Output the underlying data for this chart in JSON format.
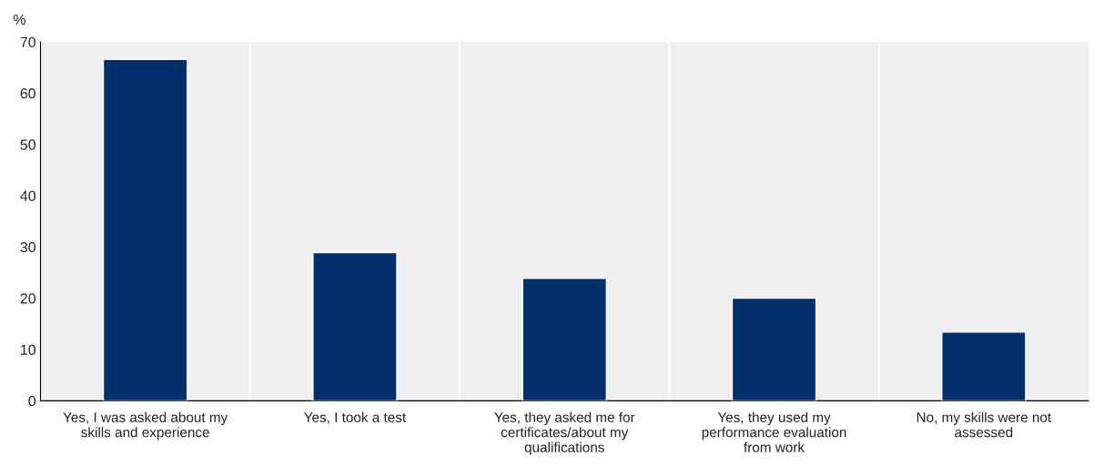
{
  "chart_data": {
    "type": "bar",
    "ylabel": "%",
    "categories": [
      "Yes, I was asked about my skills and experience",
      "Yes, I took a test",
      "Yes, they asked me for certificates/about my qualifications",
      "Yes, they used my performance evaluation from work",
      "No, my skills were not assessed"
    ],
    "values": [
      66.6,
      28.9,
      23.9,
      20.0,
      13.4
    ],
    "color": "#002f6c",
    "ylim": [
      0,
      70
    ],
    "yticks": [
      0,
      10,
      20,
      30,
      40,
      50,
      60,
      70
    ],
    "grid": "x",
    "legend": false
  }
}
